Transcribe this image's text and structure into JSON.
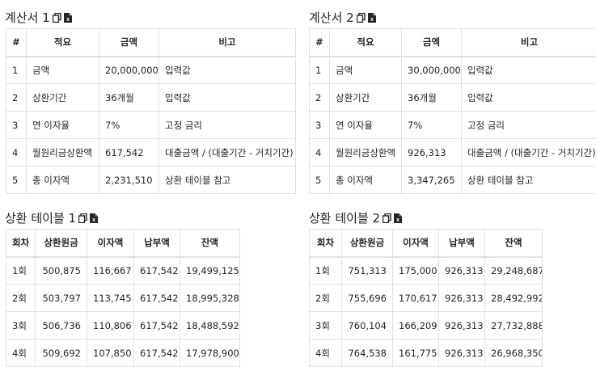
{
  "calc1": {
    "title": "계산서 1",
    "columns": [
      "#",
      "적요",
      "금액",
      "비고"
    ],
    "rows": [
      [
        "1",
        "금액",
        "20,000,000",
        "입력값"
      ],
      [
        "2",
        "상환기간",
        "36개월",
        "입력값"
      ],
      [
        "3",
        "연 이자율",
        "7%",
        "고정 금리"
      ],
      [
        "4",
        "월원리금상환액",
        "617,542",
        "대출금액 / (대출기간 - 거치기간)"
      ],
      [
        "5",
        "총 이자액",
        "2,231,510",
        "상환 테이블 참고"
      ]
    ]
  },
  "calc2": {
    "title": "계산서 2",
    "columns": [
      "#",
      "적요",
      "금액",
      "비고"
    ],
    "rows": [
      [
        "1",
        "금액",
        "30,000,000",
        "입력값"
      ],
      [
        "2",
        "상환기간",
        "36개월",
        "입력값"
      ],
      [
        "3",
        "연 이자율",
        "7%",
        "고정 금리"
      ],
      [
        "4",
        "월원리금상환액",
        "926,313",
        "대출금액 / (대출기간 - 거치기간)"
      ],
      [
        "5",
        "총 이자액",
        "3,347,265",
        "상환 테이블 참고"
      ]
    ]
  },
  "rep1": {
    "title": "상환 테이블 1",
    "columns": [
      "회차",
      "상환원금",
      "이자액",
      "납부액",
      "잔액"
    ],
    "rows": [
      [
        "1회",
        "500,875",
        "116,667",
        "617,542",
        "19,499,125"
      ],
      [
        "2회",
        "503,797",
        "113,745",
        "617,542",
        "18,995,328"
      ],
      [
        "3회",
        "506,736",
        "110,806",
        "617,542",
        "18,488,592"
      ],
      [
        "4회",
        "509,692",
        "107,850",
        "617,542",
        "17,978,900"
      ]
    ]
  },
  "rep2": {
    "title": "상환 테이블 2",
    "columns": [
      "회차",
      "상환원금",
      "이자액",
      "납부액",
      "잔액"
    ],
    "rows": [
      [
        "1회",
        "751,313",
        "175,000",
        "926,313",
        "29,248,687"
      ],
      [
        "2회",
        "755,696",
        "170,617",
        "926,313",
        "28,492,992"
      ],
      [
        "3회",
        "760,104",
        "166,209",
        "926,313",
        "27,732,888"
      ],
      [
        "4회",
        "764,538",
        "161,775",
        "926,313",
        "26,968,350"
      ]
    ]
  },
  "icons": [
    "copy-icon",
    "excel-file-icon"
  ]
}
